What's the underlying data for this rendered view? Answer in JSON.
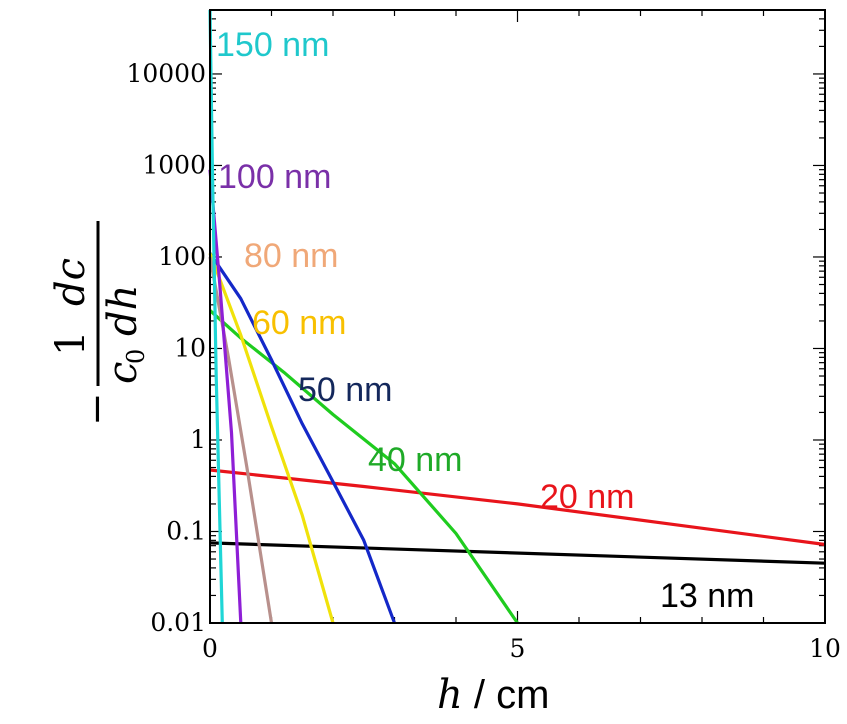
{
  "chart_data": {
    "type": "line",
    "xlabel": {
      "var": "h",
      "unit": " / cm"
    },
    "ylabel": {
      "num1": "1",
      "num2": "dc",
      "den1": "c",
      "den_sub": "0",
      "den2": "dh"
    },
    "xlim": [
      0,
      10
    ],
    "ylim": [
      0.01,
      50000
    ],
    "yscale": "log",
    "xticks": [
      {
        "value": 0,
        "label": "0"
      },
      {
        "value": 5,
        "label": "5"
      },
      {
        "value": 10,
        "label": "10"
      }
    ],
    "yticks": [
      {
        "value": 0.01,
        "label": "0.01"
      },
      {
        "value": 0.1,
        "label": "0.1"
      },
      {
        "value": 1,
        "label": "1"
      },
      {
        "value": 10,
        "label": "10"
      },
      {
        "value": 100,
        "label": "100"
      },
      {
        "value": 1000,
        "label": "1000"
      },
      {
        "value": 10000,
        "label": "10000"
      }
    ],
    "series": [
      {
        "name": "13 nm",
        "color": "#000000",
        "x": [
          0,
          10
        ],
        "y": [
          0.075,
          0.045
        ]
      },
      {
        "name": "20 nm",
        "color": "#e8141b",
        "x": [
          0,
          2.5,
          5,
          7.5,
          10
        ],
        "y": [
          0.47,
          0.31,
          0.2,
          0.12,
          0.072
        ]
      },
      {
        "name": "40 nm",
        "color": "#1fcc1f",
        "x": [
          0,
          0.5,
          1.2,
          2,
          3,
          4,
          5
        ],
        "y": [
          26,
          13,
          5.5,
          1.9,
          0.55,
          0.095,
          0.01
        ]
      },
      {
        "name": "50 nm",
        "color": "#1428c8",
        "x": [
          0,
          0.5,
          1,
          1.5,
          2,
          2.5,
          3
        ],
        "y": [
          110,
          35,
          7.5,
          1.5,
          0.35,
          0.08,
          0.01
        ]
      },
      {
        "name": "60 nm",
        "color": "#f0e20a",
        "x": [
          0,
          0.5,
          1,
          1.5,
          2
        ],
        "y": [
          110,
          14,
          1.4,
          0.15,
          0.01
        ]
      },
      {
        "name": "80 nm",
        "color": "#b8908c",
        "x": [
          0,
          0.3,
          0.6,
          1
        ],
        "y": [
          100,
          8,
          0.5,
          0.01
        ]
      },
      {
        "name": "100 nm",
        "color": "#8e1fd6",
        "x": [
          0,
          0.15,
          0.35,
          0.5
        ],
        "y": [
          900,
          60,
          1.2,
          0.01
        ]
      },
      {
        "name": "150 nm",
        "color": "#1fd6d6",
        "x": [
          0,
          0.04,
          0.1,
          0.2
        ],
        "y": [
          50000,
          800,
          5,
          0.01
        ]
      }
    ],
    "series_labels": [
      {
        "text": "150 nm",
        "color": "#1fc8cc"
      },
      {
        "text": "100 nm",
        "color": "#7a30a8"
      },
      {
        "text": "80 nm",
        "color": "#f0a878"
      },
      {
        "text": "60 nm",
        "color": "#f8c000"
      },
      {
        "text": "50 nm",
        "color": "#14285c"
      },
      {
        "text": "40 nm",
        "color": "#1faa28"
      },
      {
        "text": "20 nm",
        "color": "#e8141b"
      },
      {
        "text": "13 nm",
        "color": "#000000"
      }
    ]
  }
}
